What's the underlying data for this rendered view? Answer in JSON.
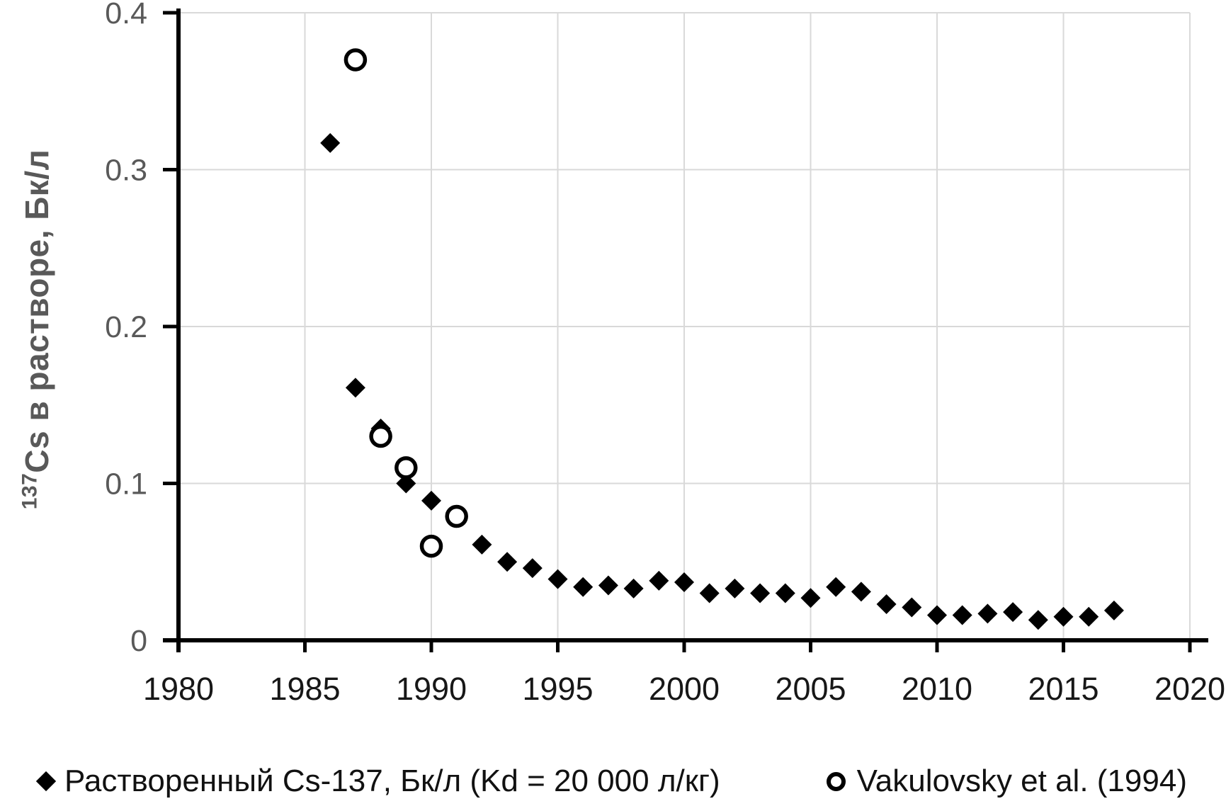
{
  "chart_data": {
    "type": "scatter",
    "title": "",
    "xlabel": "",
    "ylabel_superscript": "137",
    "ylabel": "Cs в растворе, Бк/л",
    "xlim": [
      1980,
      2020
    ],
    "ylim": [
      0,
      0.4
    ],
    "x_tick_values": [
      1980,
      1985,
      1990,
      1995,
      2000,
      2005,
      2010,
      2015,
      2020
    ],
    "x_tick_labels": [
      "1980",
      "1985",
      "1990",
      "1995",
      "2000",
      "2005",
      "2010",
      "2015",
      "2020"
    ],
    "y_tick_values": [
      0,
      0.1,
      0.2,
      0.3,
      0.4
    ],
    "y_tick_labels": [
      "0",
      "0.1",
      "0.2",
      "0.3",
      "0.4"
    ],
    "grid": "on",
    "legend_position": "bottom",
    "series": [
      {
        "name": "Растворенный Cs-137, Бк/л (Kd = 20 000 л/кг)",
        "marker": "filled-diamond",
        "color": "#000000",
        "points": [
          [
            1986,
            0.317
          ],
          [
            1987,
            0.161
          ],
          [
            1988,
            0.135
          ],
          [
            1989,
            0.1
          ],
          [
            1990,
            0.089
          ],
          [
            1991,
            0.078
          ],
          [
            1992,
            0.061
          ],
          [
            1993,
            0.05
          ],
          [
            1994,
            0.046
          ],
          [
            1995,
            0.039
          ],
          [
            1996,
            0.034
          ],
          [
            1997,
            0.035
          ],
          [
            1998,
            0.033
          ],
          [
            1999,
            0.038
          ],
          [
            2000,
            0.037
          ],
          [
            2001,
            0.03
          ],
          [
            2002,
            0.033
          ],
          [
            2003,
            0.03
          ],
          [
            2004,
            0.03
          ],
          [
            2005,
            0.027
          ],
          [
            2006,
            0.034
          ],
          [
            2007,
            0.031
          ],
          [
            2008,
            0.023
          ],
          [
            2009,
            0.021
          ],
          [
            2010,
            0.016
          ],
          [
            2011,
            0.016
          ],
          [
            2012,
            0.017
          ],
          [
            2013,
            0.018
          ],
          [
            2014,
            0.013
          ],
          [
            2015,
            0.015
          ],
          [
            2016,
            0.015
          ],
          [
            2017,
            0.019
          ]
        ]
      },
      {
        "name": "Vakulovsky et al. (1994)",
        "marker": "open-circle",
        "color": "#000000",
        "points": [
          [
            1987,
            0.37
          ],
          [
            1988,
            0.13
          ],
          [
            1989,
            0.11
          ],
          [
            1990,
            0.06
          ],
          [
            1991,
            0.079
          ]
        ]
      }
    ]
  },
  "legend": {
    "items": [
      {
        "icon": "filled-diamond-icon"
      },
      {
        "icon": "open-circle-icon"
      }
    ]
  },
  "colors": {
    "marker": "#000000",
    "grid": "#d9d9d9",
    "axis": "#000000",
    "y_tick_label": "#595959",
    "x_tick_label": "#171717",
    "axis_title": "#595959",
    "background": "#ffffff"
  }
}
